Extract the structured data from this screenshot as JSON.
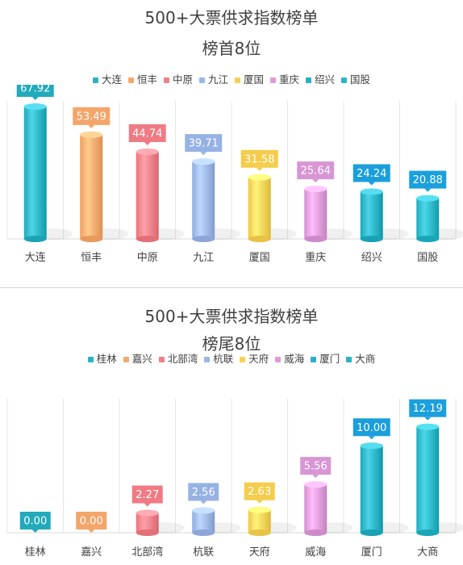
{
  "chart_data": [
    {
      "type": "bar",
      "title": "500+大票供求指数榜单",
      "subtitle": "榜首8位",
      "categories": [
        "大连",
        "恒丰",
        "中原",
        "九江",
        "厦国",
        "重庆",
        "绍兴",
        "国股"
      ],
      "values": [
        67.92,
        53.49,
        44.74,
        39.71,
        31.58,
        25.64,
        24.24,
        20.88
      ],
      "data_labels": [
        "67.92",
        "53.49",
        "44.74",
        "39.71",
        "31.58",
        "25.64",
        "24.24",
        "20.88"
      ],
      "colors": [
        "#2bb3c4",
        "#f7a86a",
        "#f27e86",
        "#9ab5e6",
        "#f7d155",
        "#dc9ad8",
        "#28b0c3",
        "#29b5c6"
      ],
      "label_colors": [
        "#22aabb",
        "#f4a56a",
        "#f07b84",
        "#96b2e4",
        "#f4cd4c",
        "#d896d5",
        "#1a9fdc",
        "#1aa0dd"
      ],
      "legend_position": "top",
      "ylim": [
        0,
        70
      ],
      "grid": false
    },
    {
      "type": "bar",
      "title": "500+大票供求指数榜单",
      "subtitle": "榜尾8位",
      "categories": [
        "桂林",
        "嘉兴",
        "北部湾",
        "杭联",
        "天府",
        "威海",
        "厦门",
        "大商"
      ],
      "values": [
        0.0,
        0.0,
        2.27,
        2.56,
        2.63,
        5.56,
        10.0,
        12.19
      ],
      "data_labels": [
        "0.00",
        "0.00",
        "2.27",
        "2.56",
        "2.63",
        "5.56",
        "10.00",
        "12.19"
      ],
      "colors": [
        "#2bb3c4",
        "#f7a86a",
        "#f27e86",
        "#9ab5e6",
        "#f7d155",
        "#dc9ad8",
        "#28b0c3",
        "#29b5c6"
      ],
      "label_colors": [
        "#22aabb",
        "#f4a56a",
        "#f07b84",
        "#96b2e4",
        "#f4cd4c",
        "#d896d5",
        "#1a9fdc",
        "#1aa0dd"
      ],
      "legend_position": "top",
      "ylim": [
        0,
        13
      ],
      "grid": false
    }
  ]
}
